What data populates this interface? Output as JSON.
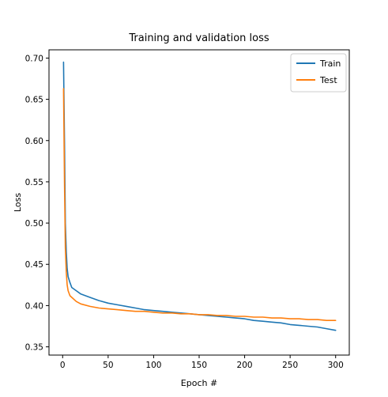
{
  "chart_data": {
    "type": "line",
    "title": "Training and validation loss",
    "xlabel": "Epoch #",
    "ylabel": "Loss",
    "xlim": [
      -15,
      315
    ],
    "ylim": [
      0.34,
      0.71
    ],
    "xticks": [
      0,
      50,
      100,
      150,
      200,
      250,
      300
    ],
    "yticks": [
      0.35,
      0.4,
      0.45,
      0.5,
      0.55,
      0.6,
      0.65,
      0.7
    ],
    "grid": false,
    "legend_position": "top-right",
    "series": [
      {
        "name": "Train",
        "color": "#1f77b4",
        "x": [
          1,
          2,
          3,
          4,
          5,
          6,
          8,
          10,
          15,
          20,
          30,
          40,
          50,
          60,
          70,
          80,
          90,
          100,
          110,
          120,
          130,
          140,
          150,
          160,
          170,
          180,
          190,
          200,
          210,
          220,
          230,
          240,
          250,
          260,
          270,
          280,
          290,
          300
        ],
        "y": [
          0.695,
          0.6,
          0.5,
          0.465,
          0.445,
          0.435,
          0.428,
          0.422,
          0.418,
          0.414,
          0.41,
          0.406,
          0.403,
          0.401,
          0.399,
          0.397,
          0.395,
          0.394,
          0.393,
          0.392,
          0.391,
          0.39,
          0.389,
          0.388,
          0.387,
          0.386,
          0.385,
          0.384,
          0.382,
          0.381,
          0.38,
          0.379,
          0.377,
          0.376,
          0.375,
          0.374,
          0.372,
          0.37
        ]
      },
      {
        "name": "Test",
        "color": "#ff7f0e",
        "x": [
          1,
          2,
          3,
          4,
          5,
          6,
          8,
          10,
          15,
          20,
          30,
          40,
          50,
          60,
          70,
          80,
          90,
          100,
          110,
          120,
          130,
          140,
          150,
          160,
          170,
          180,
          190,
          200,
          210,
          220,
          230,
          240,
          250,
          260,
          270,
          280,
          290,
          300
        ],
        "y": [
          0.663,
          0.55,
          0.47,
          0.44,
          0.425,
          0.418,
          0.412,
          0.41,
          0.405,
          0.402,
          0.399,
          0.397,
          0.396,
          0.395,
          0.394,
          0.393,
          0.393,
          0.392,
          0.391,
          0.391,
          0.39,
          0.39,
          0.389,
          0.389,
          0.388,
          0.388,
          0.387,
          0.387,
          0.386,
          0.386,
          0.385,
          0.385,
          0.384,
          0.384,
          0.383,
          0.383,
          0.382,
          0.382
        ]
      }
    ]
  }
}
